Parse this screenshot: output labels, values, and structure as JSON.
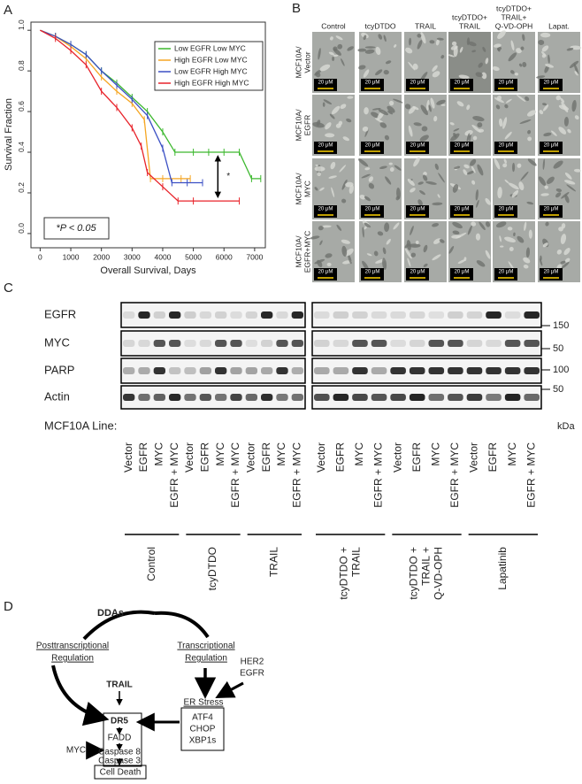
{
  "panel_letters": [
    "A",
    "B",
    "C",
    "D"
  ],
  "chart_data": {
    "type": "line",
    "x_label": "Overall Survival, Days",
    "y_label": "Survival Fraction",
    "xlim": [
      -300,
      7350
    ],
    "ylim": [
      -0.07,
      1.04
    ],
    "xticks": [
      0,
      1000,
      2000,
      3000,
      4000,
      5000,
      6000,
      7000
    ],
    "yticks": [
      {
        "value": 0,
        "label": "0.0"
      },
      {
        "value": 0.2,
        "label": "0.2"
      },
      {
        "value": 0.4,
        "label": "0.4"
      },
      {
        "value": 0.6,
        "label": "0.6"
      },
      {
        "value": 0.8,
        "label": "0.8"
      },
      {
        "value": 1,
        "label": "1.0"
      }
    ],
    "legend": "upper right",
    "series": [
      {
        "name": "Low EGFR Low MYC",
        "color": "#3cb82e",
        "x": [
          0,
          500,
          1000,
          1500,
          2000,
          2500,
          3000,
          3500,
          4000,
          4400,
          5000,
          5500,
          6000,
          6500,
          6900,
          7200
        ],
        "values": [
          1.0,
          0.97,
          0.93,
          0.88,
          0.8,
          0.74,
          0.67,
          0.6,
          0.5,
          0.4,
          0.4,
          0.4,
          0.4,
          0.4,
          0.27,
          0.27
        ]
      },
      {
        "name": "High EGFR Low MYC",
        "color": "#f5a623",
        "x": [
          0,
          500,
          1000,
          1500,
          2000,
          2500,
          3000,
          3400,
          3600,
          4000,
          4600,
          4900
        ],
        "values": [
          1.0,
          0.97,
          0.92,
          0.86,
          0.77,
          0.7,
          0.64,
          0.56,
          0.27,
          0.27,
          0.27,
          0.27
        ]
      },
      {
        "name": "Low EGFR High MYC",
        "color": "#3a4fc4",
        "x": [
          0,
          500,
          1000,
          1500,
          2000,
          2500,
          3000,
          3500,
          4000,
          4300,
          4800,
          5300
        ],
        "values": [
          1.0,
          0.97,
          0.93,
          0.88,
          0.8,
          0.73,
          0.66,
          0.58,
          0.42,
          0.25,
          0.25,
          0.25
        ]
      },
      {
        "name": "High EGFR High MYC",
        "color": "#e8232a",
        "x": [
          0,
          500,
          1000,
          1500,
          2000,
          2500,
          3000,
          3300,
          3500,
          4000,
          4500,
          5000,
          6500
        ],
        "values": [
          1.0,
          0.96,
          0.9,
          0.83,
          0.7,
          0.62,
          0.52,
          0.43,
          0.3,
          0.23,
          0.16,
          0.16,
          0.16
        ]
      }
    ],
    "significance_marker": "*",
    "p_value_note": "*P < 0.05"
  },
  "panel_B": {
    "columns": [
      [
        "Control"
      ],
      [
        "tcyDTDO"
      ],
      [
        "TRAIL"
      ],
      [
        "tcyDTDO+",
        "TRAIL"
      ],
      [
        "tcyDTDO+",
        "TRAIL+",
        "Q-VD-OPH"
      ],
      [
        "Lapat."
      ]
    ],
    "rows": [
      [
        "MCF10A/",
        "Vector"
      ],
      [
        "MCF10A/",
        "EGFR"
      ],
      [
        "MCF10A/",
        "MYC"
      ],
      [
        "MCF10A/",
        "EGFR+MYC"
      ]
    ],
    "scale_bar": "20 μM"
  },
  "panel_C": {
    "proteins": [
      "EGFR",
      "MYC",
      "PARP",
      "Actin"
    ],
    "markers": [
      "150",
      "50",
      "100",
      "50"
    ],
    "unit": "kDa",
    "line_label": "MCF10A Line:",
    "lanes": [
      "Vector",
      "EGFR",
      "MYC",
      "EGFR + MYC"
    ],
    "groups": [
      [
        "Control"
      ],
      [
        "tcyDTDO"
      ],
      [
        "TRAIL"
      ],
      [
        "tcyDTDO +",
        "TRAIL"
      ],
      [
        "tcyDTDO +",
        "TRAIL +",
        "Q-VD-OPH"
      ],
      [
        "Lapatinib"
      ]
    ]
  },
  "panel_D": {
    "ddas": "DDAs",
    "post": [
      "Posttranscriptional",
      "Regulation"
    ],
    "trans": [
      "Transcriptional",
      "Regulation"
    ],
    "receptors": [
      "HER2",
      "EGFR"
    ],
    "trail": "TRAIL",
    "er_stress": "ER Stress",
    "dr5": "DR5",
    "stress_genes": [
      "ATF4",
      "CHOP",
      "XBP1s"
    ],
    "fadd": "FADD",
    "casp8": "Caspase 8",
    "casp3": "Caspase 3",
    "death": "Cell Death",
    "myc": "MYC"
  }
}
